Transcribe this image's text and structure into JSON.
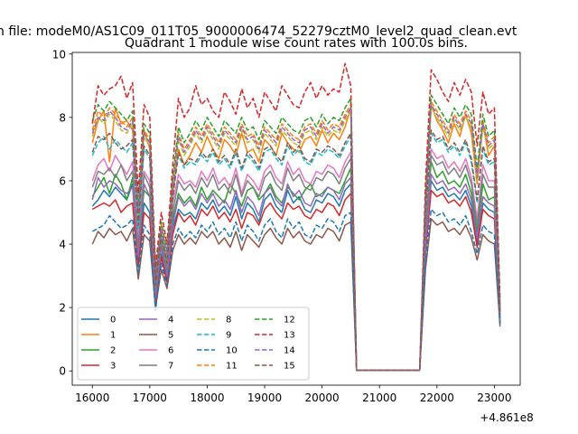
{
  "figure": {
    "suptitle": "n file: modeM0/AS1C09_011T05_9000006474_52279cztM0_level2_quad_clean.evt"
  },
  "chart_data": {
    "type": "line",
    "title": "Quadrant 1 module wise count rates with 100.0s bins.",
    "xlabel": "",
    "ylabel": "",
    "x_offset_label": "+4.861e8",
    "xlim": [
      15650,
      23450
    ],
    "ylim": [
      -0.45,
      10.05
    ],
    "x_ticks": [
      16000,
      17000,
      18000,
      19000,
      20000,
      21000,
      22000,
      23000
    ],
    "x_tick_labels": [
      "16000",
      "17000",
      "18000",
      "19000",
      "20000",
      "21000",
      "22000",
      "23000"
    ],
    "y_ticks": [
      0,
      2,
      4,
      6,
      8,
      10
    ],
    "y_tick_labels": [
      "0",
      "2",
      "4",
      "6",
      "8",
      "10"
    ],
    "grid": false,
    "legend_position": "lower-left",
    "legend_columns": 4,
    "x": [
      16000,
      16100,
      16200,
      16300,
      16400,
      16500,
      16600,
      16700,
      16800,
      16900,
      17000,
      17100,
      17200,
      17300,
      17400,
      17500,
      17600,
      17700,
      17800,
      17900,
      18000,
      18100,
      18200,
      18300,
      18400,
      18500,
      18600,
      18700,
      18800,
      18900,
      19000,
      19100,
      19200,
      19300,
      19400,
      19500,
      19600,
      19700,
      19800,
      19900,
      20000,
      20100,
      20200,
      20300,
      20400,
      20500,
      20600,
      21700,
      21800,
      21900,
      22000,
      22100,
      22200,
      22300,
      22400,
      22500,
      22600,
      22700,
      22800,
      22900,
      23000,
      23100
    ],
    "series": [
      {
        "name": "0",
        "color": "#1f77b4",
        "style": "solid",
        "values": [
          5.2,
          5.4,
          5.7,
          5.5,
          5.8,
          5.6,
          5.4,
          5.9,
          3.5,
          5.3,
          5.0,
          2.4,
          3.7,
          2.9,
          4.5,
          5.1,
          4.9,
          5.0,
          4.8,
          5.3,
          5.1,
          5.4,
          5.0,
          5.2,
          4.9,
          5.5,
          4.8,
          5.3,
          5.1,
          4.7,
          5.4,
          5.6,
          5.2,
          5.0,
          5.7,
          5.3,
          5.5,
          5.1,
          5.0,
          5.4,
          5.3,
          5.6,
          5.5,
          5.2,
          5.7,
          5.9,
          0.02,
          0.02,
          3.8,
          6.0,
          5.7,
          5.8,
          5.5,
          5.6,
          5.4,
          5.7,
          5.2,
          4.0,
          5.3,
          5.1,
          5.0,
          1.5
        ]
      },
      {
        "name": "1",
        "color": "#ff7f0e",
        "style": "solid",
        "values": [
          7.2,
          7.9,
          8.2,
          6.6,
          8.3,
          7.8,
          7.9,
          7.6,
          4.9,
          7.6,
          7.0,
          2.0,
          4.3,
          3.5,
          5.6,
          7.0,
          6.5,
          6.8,
          7.2,
          6.9,
          7.4,
          7.0,
          6.7,
          7.3,
          7.1,
          6.8,
          7.5,
          6.9,
          7.0,
          6.6,
          7.3,
          7.1,
          6.8,
          7.5,
          7.2,
          7.0,
          6.9,
          7.3,
          7.4,
          7.1,
          7.6,
          7.2,
          7.5,
          7.3,
          7.7,
          8.3,
          0.02,
          0.02,
          5.0,
          8.4,
          7.9,
          7.6,
          7.2,
          7.8,
          7.4,
          8.1,
          7.5,
          5.9,
          7.8,
          6.8,
          7.1,
          1.8
        ]
      },
      {
        "name": "2",
        "color": "#2ca02c",
        "style": "solid",
        "values": [
          5.5,
          5.8,
          6.1,
          5.6,
          6.2,
          5.9,
          5.4,
          6.1,
          3.8,
          5.7,
          5.5,
          2.2,
          4.0,
          3.1,
          4.8,
          5.6,
          5.3,
          5.5,
          5.2,
          5.8,
          5.4,
          5.7,
          5.5,
          5.3,
          5.9,
          5.6,
          5.2,
          5.7,
          5.8,
          5.4,
          5.6,
          5.9,
          5.5,
          5.3,
          5.8,
          5.6,
          5.4,
          5.7,
          5.9,
          5.5,
          5.6,
          5.8,
          5.7,
          5.6,
          6.0,
          6.4,
          0.02,
          0.02,
          4.2,
          6.6,
          6.1,
          6.3,
          5.9,
          6.0,
          5.8,
          6.2,
          5.6,
          4.4,
          5.9,
          5.4,
          5.5,
          1.6
        ]
      },
      {
        "name": "3",
        "color": "#d62728",
        "style": "solid",
        "values": [
          5.1,
          5.2,
          5.3,
          5.2,
          5.4,
          5.0,
          5.2,
          5.3,
          3.3,
          5.0,
          4.8,
          2.2,
          3.6,
          2.8,
          4.3,
          5.0,
          4.7,
          4.9,
          4.6,
          5.1,
          4.9,
          5.2,
          4.8,
          5.0,
          4.7,
          5.1,
          4.5,
          5.0,
          4.9,
          4.6,
          5.1,
          5.3,
          5.0,
          4.8,
          5.3,
          5.1,
          5.2,
          4.9,
          4.8,
          5.1,
          5.0,
          5.3,
          5.2,
          4.9,
          5.4,
          5.6,
          0.02,
          0.02,
          3.7,
          5.7,
          5.5,
          5.6,
          5.3,
          5.4,
          5.2,
          5.5,
          5.0,
          3.9,
          5.1,
          4.9,
          4.8,
          1.5
        ]
      },
      {
        "name": "4",
        "color": "#9467bd",
        "style": "solid",
        "values": [
          5.4,
          6.1,
          5.8,
          6.0,
          5.9,
          5.7,
          5.6,
          5.8,
          3.6,
          5.9,
          5.5,
          2.3,
          3.9,
          3.0,
          4.6,
          5.5,
          5.2,
          5.4,
          5.1,
          5.6,
          5.3,
          5.6,
          5.2,
          5.4,
          5.1,
          5.7,
          5.0,
          5.5,
          5.3,
          4.9,
          5.6,
          5.8,
          5.4,
          5.2,
          5.9,
          5.5,
          5.7,
          5.3,
          5.2,
          5.6,
          5.5,
          5.8,
          5.7,
          5.4,
          5.9,
          6.1,
          0.02,
          0.02,
          3.9,
          6.2,
          5.9,
          6.0,
          5.7,
          5.8,
          5.6,
          5.9,
          5.4,
          4.2,
          5.5,
          5.3,
          5.2,
          1.5
        ]
      },
      {
        "name": "5",
        "color": "#8c564b",
        "style": "solid",
        "values": [
          4.0,
          4.4,
          4.2,
          4.5,
          4.3,
          4.4,
          4.1,
          4.5,
          2.9,
          4.3,
          4.1,
          2.0,
          3.2,
          2.6,
          3.8,
          4.3,
          4.0,
          4.2,
          4.0,
          4.4,
          4.2,
          4.4,
          4.0,
          4.2,
          3.9,
          4.4,
          3.8,
          4.3,
          4.1,
          3.9,
          4.3,
          4.5,
          4.2,
          4.0,
          4.5,
          4.2,
          4.4,
          4.1,
          4.0,
          4.3,
          4.2,
          4.5,
          4.4,
          4.1,
          4.6,
          4.7,
          0.02,
          0.02,
          3.2,
          4.8,
          4.6,
          4.7,
          4.4,
          4.5,
          4.3,
          4.6,
          4.2,
          3.5,
          4.3,
          4.1,
          4.0,
          1.4
        ]
      },
      {
        "name": "6",
        "color": "#e377c2",
        "style": "solid",
        "values": [
          6.0,
          6.5,
          6.7,
          6.3,
          6.8,
          6.5,
          6.2,
          6.6,
          4.2,
          6.3,
          6.0,
          2.6,
          4.2,
          3.3,
          5.3,
          6.2,
          5.9,
          6.0,
          5.8,
          6.3,
          6.0,
          6.4,
          5.9,
          6.1,
          5.8,
          6.4,
          5.6,
          6.2,
          6.0,
          5.7,
          6.3,
          6.5,
          6.1,
          5.9,
          6.6,
          6.2,
          6.4,
          6.0,
          5.9,
          6.3,
          6.2,
          6.5,
          6.4,
          6.1,
          6.6,
          6.9,
          0.02,
          0.02,
          4.5,
          7.0,
          6.7,
          6.8,
          6.4,
          6.6,
          6.3,
          6.7,
          6.1,
          4.8,
          6.5,
          6.0,
          6.0,
          1.7
        ]
      },
      {
        "name": "7",
        "color": "#7f7f7f",
        "style": "solid",
        "values": [
          5.8,
          6.3,
          6.2,
          6.4,
          6.1,
          6.5,
          6.0,
          6.3,
          3.9,
          6.2,
          5.8,
          2.5,
          4.1,
          3.3,
          5.0,
          6.0,
          5.7,
          5.9,
          5.6,
          6.1,
          5.8,
          6.2,
          5.7,
          5.9,
          5.6,
          6.2,
          5.5,
          6.0,
          5.8,
          5.5,
          6.1,
          6.3,
          5.9,
          5.7,
          6.4,
          6.0,
          6.2,
          5.8,
          5.7,
          6.1,
          6.0,
          6.3,
          6.2,
          5.9,
          6.4,
          6.7,
          0.02,
          0.02,
          4.4,
          6.8,
          6.5,
          6.6,
          6.2,
          6.4,
          6.1,
          6.5,
          5.9,
          4.6,
          6.2,
          5.8,
          5.8,
          1.6
        ]
      },
      {
        "name": "8",
        "color": "#bcbd22",
        "style": "dashed",
        "values": [
          7.4,
          8.0,
          7.8,
          8.1,
          7.9,
          7.6,
          7.5,
          7.8,
          4.8,
          7.4,
          7.1,
          2.9,
          4.4,
          3.6,
          5.7,
          7.3,
          6.8,
          7.1,
          7.5,
          7.2,
          7.6,
          7.3,
          7.0,
          7.5,
          7.3,
          7.1,
          7.6,
          7.2,
          7.3,
          6.9,
          7.5,
          7.3,
          7.1,
          7.6,
          7.4,
          7.2,
          7.1,
          7.5,
          7.6,
          7.3,
          7.7,
          7.4,
          7.6,
          7.5,
          7.9,
          8.2,
          0.02,
          0.02,
          5.1,
          8.3,
          8.0,
          7.7,
          7.4,
          7.9,
          7.6,
          8.0,
          7.7,
          6.0,
          7.7,
          7.0,
          7.2,
          1.9
        ]
      },
      {
        "name": "9",
        "color": "#17becf",
        "style": "dashed",
        "values": [
          6.8,
          7.2,
          7.4,
          7.0,
          7.3,
          7.1,
          6.9,
          7.2,
          4.5,
          7.0,
          6.7,
          2.7,
          4.3,
          3.5,
          5.5,
          6.8,
          6.4,
          6.6,
          6.5,
          6.8,
          6.6,
          6.9,
          6.5,
          6.7,
          6.4,
          6.9,
          6.3,
          6.8,
          6.6,
          6.3,
          6.9,
          7.0,
          6.7,
          6.5,
          7.1,
          6.8,
          7.0,
          6.6,
          6.5,
          6.9,
          6.8,
          7.0,
          6.9,
          6.7,
          7.1,
          7.4,
          0.02,
          0.02,
          4.8,
          7.5,
          7.2,
          7.3,
          6.9,
          7.1,
          6.8,
          7.2,
          6.6,
          5.3,
          7.0,
          6.5,
          6.6,
          1.8
        ]
      },
      {
        "name": "10",
        "color": "#1f77b4",
        "style": "dashed",
        "values": [
          4.4,
          4.5,
          4.6,
          4.9,
          4.7,
          4.5,
          4.6,
          4.8,
          3.1,
          4.6,
          4.3,
          1.9,
          3.4,
          2.7,
          4.0,
          4.5,
          4.2,
          4.4,
          4.2,
          4.6,
          4.4,
          4.7,
          4.3,
          4.5,
          4.2,
          4.7,
          4.1,
          4.6,
          4.4,
          4.1,
          4.6,
          4.8,
          4.4,
          4.2,
          4.8,
          4.5,
          4.7,
          4.3,
          4.2,
          4.6,
          4.5,
          4.8,
          4.7,
          4.4,
          4.9,
          5.0,
          0.02,
          0.02,
          3.4,
          5.1,
          4.9,
          5.0,
          4.7,
          4.8,
          4.6,
          4.9,
          4.4,
          3.7,
          4.6,
          4.4,
          4.3,
          1.5
        ]
      },
      {
        "name": "11",
        "color": "#ff7f0e",
        "style": "dashed",
        "values": [
          7.6,
          8.2,
          8.0,
          8.3,
          8.1,
          7.9,
          7.7,
          8.0,
          5.0,
          7.6,
          7.3,
          3.0,
          4.6,
          3.7,
          5.9,
          7.5,
          7.0,
          7.3,
          7.7,
          7.4,
          7.8,
          7.5,
          7.2,
          7.7,
          7.5,
          7.3,
          7.8,
          7.4,
          7.5,
          7.1,
          7.7,
          7.5,
          7.3,
          7.8,
          7.6,
          7.4,
          7.3,
          7.7,
          7.8,
          7.5,
          7.9,
          7.6,
          7.8,
          7.7,
          8.1,
          8.4,
          0.02,
          0.02,
          5.3,
          8.5,
          8.2,
          7.9,
          7.6,
          8.1,
          7.8,
          8.2,
          7.9,
          6.2,
          7.9,
          7.2,
          7.4,
          1.9
        ]
      },
      {
        "name": "12",
        "color": "#2ca02c",
        "style": "dashed",
        "values": [
          7.9,
          8.4,
          8.2,
          8.5,
          8.3,
          8.1,
          7.9,
          8.2,
          5.2,
          7.8,
          7.5,
          3.1,
          4.7,
          3.8,
          6.1,
          7.7,
          7.2,
          7.5,
          7.9,
          7.6,
          8.0,
          7.7,
          7.4,
          7.9,
          7.7,
          7.5,
          8.0,
          7.6,
          7.7,
          7.3,
          7.9,
          7.7,
          7.5,
          8.0,
          7.8,
          7.6,
          7.5,
          7.9,
          8.0,
          7.7,
          8.1,
          7.8,
          8.0,
          7.9,
          8.3,
          8.6,
          0.02,
          0.02,
          5.5,
          8.7,
          8.4,
          8.1,
          7.8,
          8.3,
          8.0,
          8.4,
          8.1,
          6.4,
          8.1,
          7.4,
          7.6,
          2.0
        ]
      },
      {
        "name": "13",
        "color": "#d62728",
        "style": "dashed",
        "values": [
          7.8,
          9.0,
          8.7,
          8.9,
          9.0,
          9.3,
          8.6,
          9.1,
          5.6,
          8.4,
          8.0,
          3.3,
          5.0,
          4.0,
          6.5,
          8.6,
          8.0,
          8.3,
          9.0,
          8.4,
          8.6,
          8.2,
          8.0,
          8.8,
          8.5,
          8.1,
          8.9,
          8.3,
          8.6,
          8.0,
          8.8,
          8.5,
          8.2,
          9.0,
          8.7,
          8.4,
          8.3,
          8.8,
          9.1,
          8.6,
          9.0,
          8.7,
          8.9,
          8.8,
          9.7,
          9.0,
          0.02,
          0.02,
          5.9,
          9.5,
          9.2,
          8.8,
          8.5,
          9.1,
          8.7,
          9.2,
          8.8,
          7.1,
          8.8,
          8.1,
          8.3,
          2.2
        ]
      },
      {
        "name": "14",
        "color": "#9467bd",
        "style": "dashed",
        "values": [
          7.5,
          8.0,
          7.9,
          8.2,
          8.0,
          7.7,
          7.6,
          7.9,
          5.0,
          7.5,
          7.2,
          2.9,
          4.5,
          3.7,
          5.8,
          7.4,
          6.9,
          7.2,
          7.6,
          7.3,
          7.7,
          7.4,
          7.1,
          7.6,
          7.4,
          7.2,
          7.7,
          7.3,
          7.4,
          7.0,
          7.6,
          7.4,
          7.2,
          7.7,
          7.5,
          7.3,
          7.2,
          7.6,
          7.7,
          7.4,
          7.8,
          7.5,
          7.7,
          7.6,
          8.0,
          8.3,
          0.02,
          0.02,
          5.2,
          8.4,
          8.1,
          7.8,
          7.5,
          8.0,
          7.7,
          8.1,
          7.8,
          6.1,
          7.8,
          7.1,
          7.3,
          1.9
        ]
      },
      {
        "name": "15",
        "color": "#8c564b",
        "style": "dashed",
        "values": [
          6.9,
          7.4,
          7.3,
          7.5,
          7.2,
          7.0,
          7.1,
          7.3,
          4.6,
          7.1,
          6.8,
          2.7,
          4.3,
          3.4,
          5.5,
          6.9,
          6.5,
          6.7,
          6.6,
          6.9,
          6.7,
          7.0,
          6.6,
          6.8,
          6.5,
          7.0,
          6.4,
          6.9,
          6.7,
          6.4,
          7.0,
          7.1,
          6.8,
          6.6,
          7.2,
          6.9,
          7.1,
          6.7,
          6.6,
          7.0,
          6.9,
          7.1,
          7.0,
          6.8,
          7.2,
          7.5,
          0.02,
          0.02,
          4.9,
          7.6,
          7.3,
          7.4,
          7.0,
          7.2,
          6.9,
          7.3,
          6.7,
          5.4,
          7.1,
          6.6,
          6.7,
          1.8
        ]
      }
    ]
  }
}
